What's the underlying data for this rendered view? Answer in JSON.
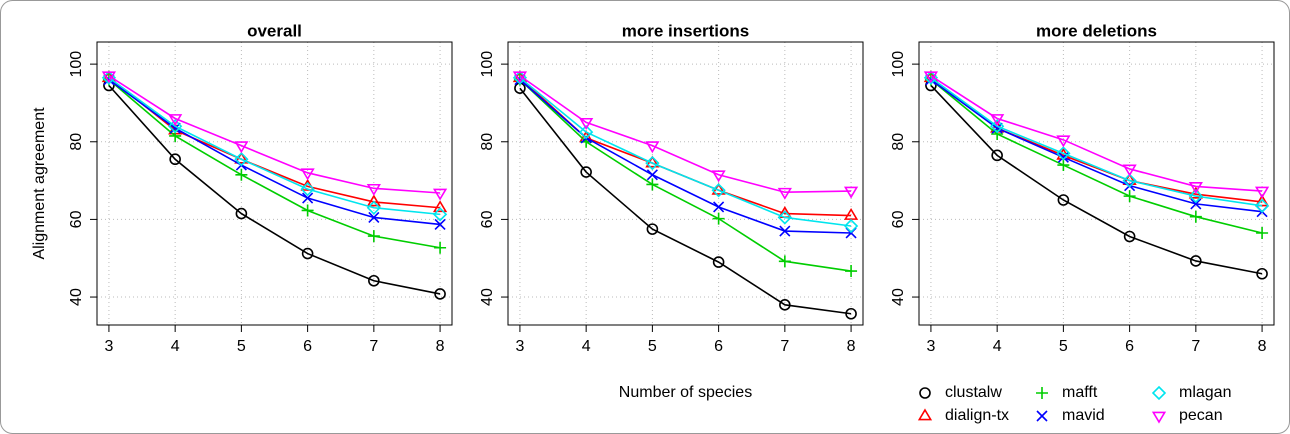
{
  "chart_data": [
    {
      "type": "line",
      "title": "overall",
      "y_label": "Alignment agreement",
      "x": [
        3,
        4,
        5,
        6,
        7,
        8
      ],
      "xlim": [
        2.82,
        8.18
      ],
      "xticks": [
        3,
        4,
        5,
        6,
        7,
        8
      ],
      "ylim": [
        32.8,
        105.7
      ],
      "yticks": [
        40,
        60,
        80,
        100
      ],
      "grid": true,
      "series": [
        {
          "name": "clustalw",
          "color": "#000000",
          "marker": "circle",
          "values": [
            94.5,
            75.5,
            61.5,
            51.2,
            44.2,
            40.8
          ]
        },
        {
          "name": "dialign-tx",
          "color": "#ff0000",
          "marker": "triangle",
          "values": [
            96.5,
            83,
            75.5,
            68.5,
            64.5,
            63
          ]
        },
        {
          "name": "mafft",
          "color": "#00cd00",
          "marker": "plus",
          "values": [
            96,
            81.5,
            71.5,
            62.3,
            55.7,
            52.7
          ]
        },
        {
          "name": "mavid",
          "color": "#0000ff",
          "marker": "cross",
          "values": [
            96,
            83.5,
            74,
            65.5,
            60.5,
            58.7
          ]
        },
        {
          "name": "mlagan",
          "color": "#00e5ee",
          "marker": "diamond",
          "values": [
            96.5,
            84,
            75.5,
            67.8,
            63,
            61.3
          ]
        },
        {
          "name": "pecan",
          "color": "#ff00ff",
          "marker": "triangle-down",
          "values": [
            97,
            86,
            79,
            72,
            68,
            66.8
          ]
        }
      ]
    },
    {
      "type": "line",
      "title": "more insertions",
      "x_label": "Number of species",
      "x": [
        3,
        4,
        5,
        6,
        7,
        8
      ],
      "xlim": [
        2.82,
        8.18
      ],
      "xticks": [
        3,
        4,
        5,
        6,
        7,
        8
      ],
      "ylim": [
        32.8,
        105.7
      ],
      "yticks": [
        40,
        60,
        80,
        100
      ],
      "grid": true,
      "series": [
        {
          "name": "clustalw",
          "color": "#000000",
          "marker": "circle",
          "values": [
            93.8,
            72.2,
            57.5,
            49,
            38,
            35.7
          ]
        },
        {
          "name": "dialign-tx",
          "color": "#ff0000",
          "marker": "triangle",
          "values": [
            96.5,
            81,
            74.5,
            67.5,
            61.5,
            61
          ]
        },
        {
          "name": "mafft",
          "color": "#00cd00",
          "marker": "plus",
          "values": [
            96,
            80,
            69,
            60.2,
            49.2,
            46.7
          ]
        },
        {
          "name": "mavid",
          "color": "#0000ff",
          "marker": "cross",
          "values": [
            96,
            81,
            71.5,
            63.2,
            57,
            56.5
          ]
        },
        {
          "name": "mlagan",
          "color": "#00e5ee",
          "marker": "diamond",
          "values": [
            96.5,
            82.5,
            74.5,
            67.5,
            60.5,
            58.3
          ]
        },
        {
          "name": "pecan",
          "color": "#ff00ff",
          "marker": "triangle-down",
          "values": [
            97,
            85,
            79,
            71.5,
            67,
            67.3
          ]
        }
      ]
    },
    {
      "type": "line",
      "title": "more deletions",
      "x": [
        3,
        4,
        5,
        6,
        7,
        8
      ],
      "xlim": [
        2.82,
        8.18
      ],
      "xticks": [
        3,
        4,
        5,
        6,
        7,
        8
      ],
      "ylim": [
        32.8,
        105.7
      ],
      "yticks": [
        40,
        60,
        80,
        100
      ],
      "grid": true,
      "series": [
        {
          "name": "clustalw",
          "color": "#000000",
          "marker": "circle",
          "values": [
            94.5,
            76.5,
            65,
            55.6,
            49.3,
            46
          ]
        },
        {
          "name": "dialign-tx",
          "color": "#ff0000",
          "marker": "triangle",
          "values": [
            96.5,
            83.5,
            76.5,
            70,
            66.5,
            64.5
          ]
        },
        {
          "name": "mafft",
          "color": "#00cd00",
          "marker": "plus",
          "values": [
            96,
            82,
            74,
            66,
            60.7,
            56.5
          ]
        },
        {
          "name": "mavid",
          "color": "#0000ff",
          "marker": "cross",
          "values": [
            96,
            83.5,
            76,
            68.7,
            64,
            62
          ]
        },
        {
          "name": "mlagan",
          "color": "#00e5ee",
          "marker": "diamond",
          "values": [
            96.5,
            84,
            77,
            70,
            66,
            63.5
          ]
        },
        {
          "name": "pecan",
          "color": "#ff00ff",
          "marker": "triangle-down",
          "values": [
            97,
            86,
            80.5,
            73,
            68.5,
            67.3
          ]
        }
      ]
    }
  ]
}
